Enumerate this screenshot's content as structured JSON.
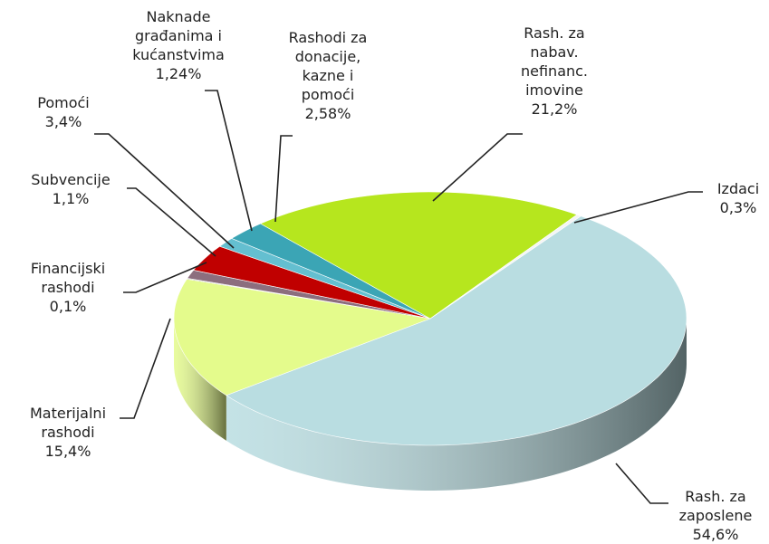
{
  "chart_data": {
    "type": "pie3d",
    "categories": [
      "Rash. za\nzaposlene",
      "Materijalni\nrashodi",
      "Financijski\nrashodi",
      "Subvencije",
      "Pomoći",
      "Naknade\ngrađanima i\nkućanstvima",
      "Rashodi za\ndonacije,\nkazne i\npomoći",
      "Rash. za\nnabav.\nnefinanc.\nimovine",
      "Izdaci"
    ],
    "values": [
      54.6,
      15.4,
      0.1,
      1.1,
      3.4,
      1.24,
      2.58,
      21.2,
      0.3
    ],
    "value_labels": [
      "54,6%",
      "15,4%",
      "0,1%",
      "1,1%",
      "3,4%",
      "1,24%",
      "2,58%",
      "21,2%",
      "0,3%"
    ],
    "colors": [
      "#b9dde1",
      "#e4fb8c",
      "#8f8f8f",
      "#8c6e7e",
      "#c00000",
      "#64bfd0",
      "#3ba5b5",
      "#b6e61e",
      "#f4f4f4"
    ]
  }
}
